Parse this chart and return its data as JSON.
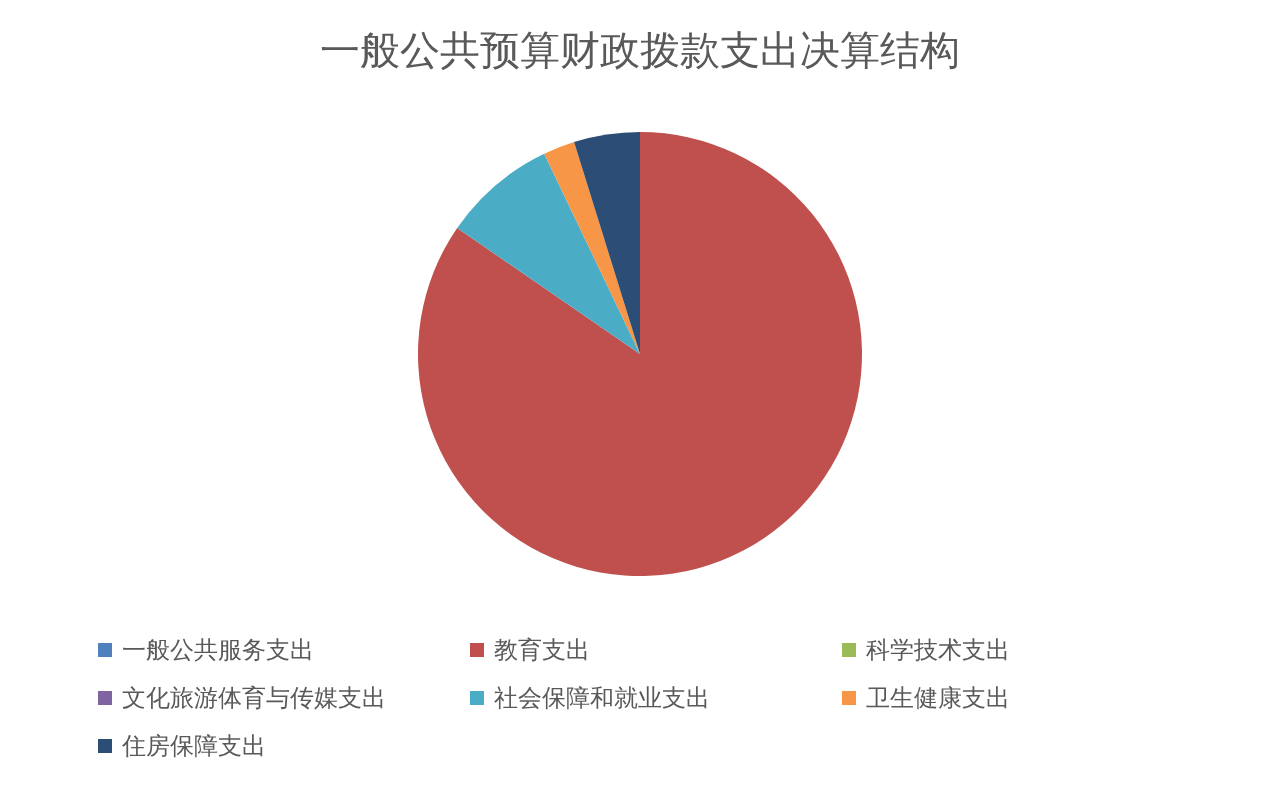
{
  "chart_data": {
    "type": "pie",
    "title": "一般公共预算财政拨款支出决算结构",
    "categories": [
      "一般公共服务支出",
      "教育支出",
      "科学技术支出",
      "文化旅游体育与传媒支出",
      "社会保障和就业支出",
      "卫生健康支出",
      "住房保障支出"
    ],
    "values": [
      0,
      84.6,
      0,
      0,
      8.3,
      2.3,
      4.8
    ],
    "colors": [
      "#4f81bd",
      "#c0504d",
      "#9bbb59",
      "#8064a2",
      "#4bacc6",
      "#f79646",
      "#2c4d75"
    ],
    "legend": "bottom"
  }
}
